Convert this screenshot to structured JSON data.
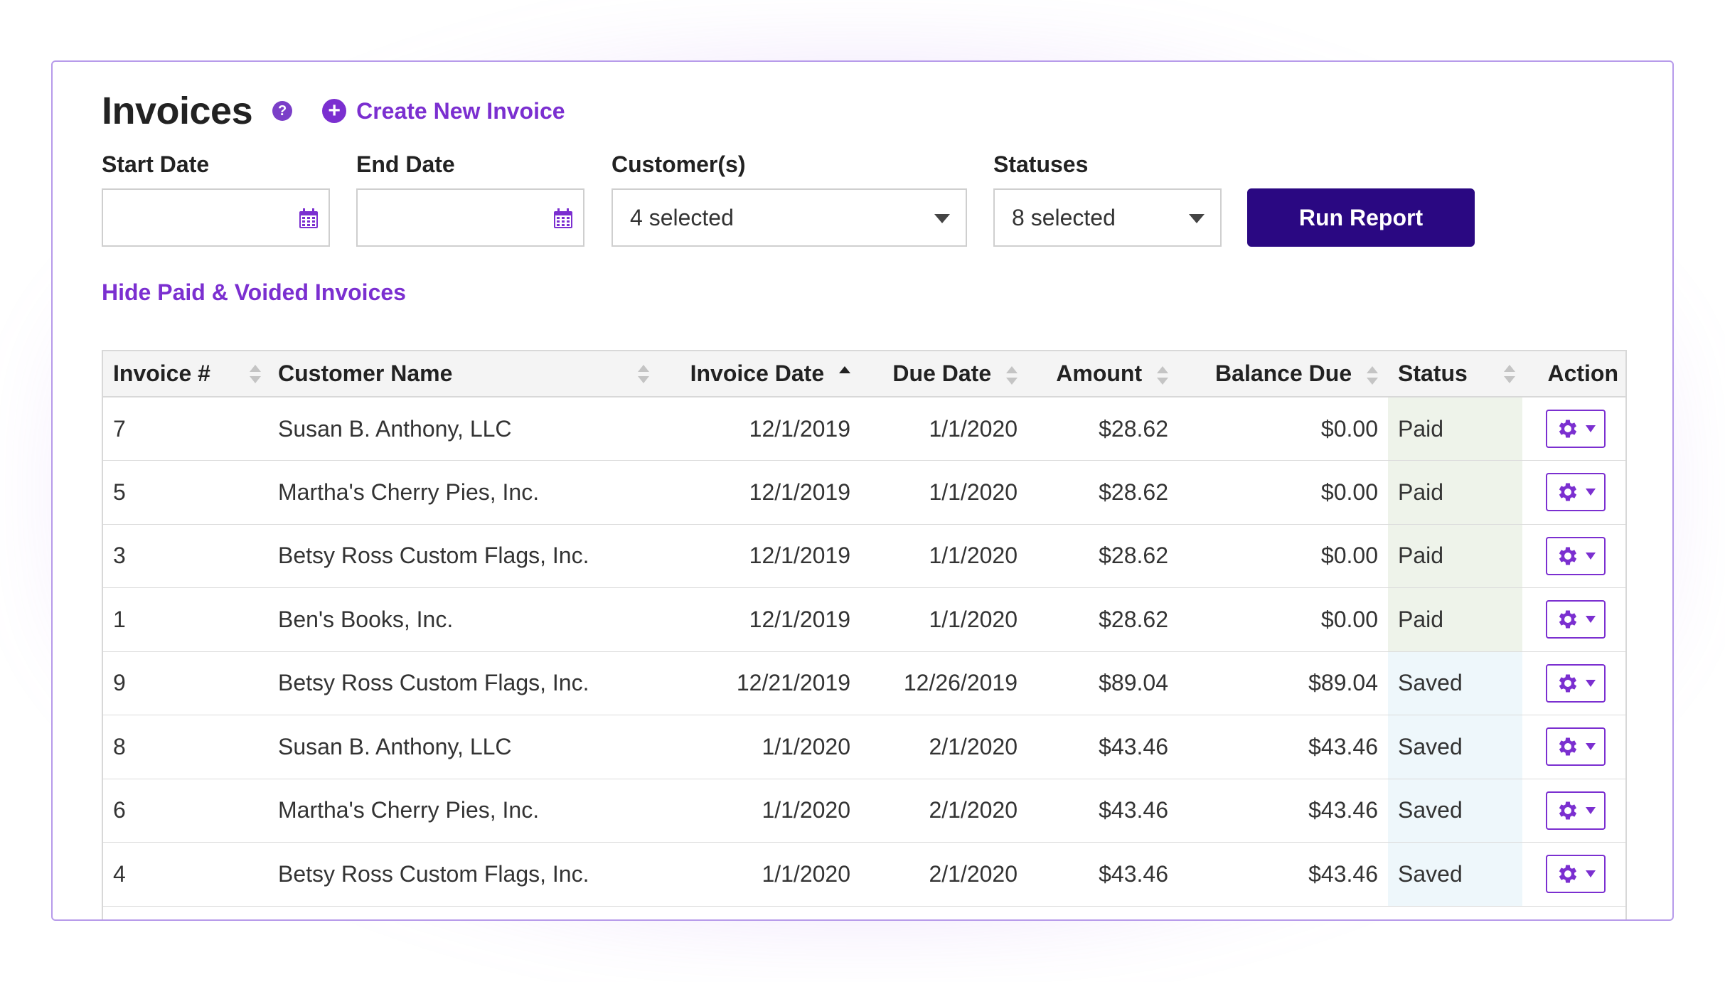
{
  "page": {
    "title": "Invoices",
    "help_icon": "question-circle-icon",
    "create_link": "Create New Invoice",
    "hide_link": "Hide Paid & Voided Invoices",
    "accent_color": "#7b2fd0",
    "button_color": "#2a0882"
  },
  "filters": {
    "start_date_label": "Start Date",
    "start_date_value": "",
    "end_date_label": "End Date",
    "end_date_value": "",
    "customers_label": "Customer(s)",
    "customers_value": "4 selected",
    "statuses_label": "Statuses",
    "statuses_value": "8 selected",
    "run_button": "Run Report"
  },
  "table": {
    "columns": [
      {
        "label": "Invoice #",
        "sortable": true,
        "sort": "none"
      },
      {
        "label": "Customer Name",
        "sortable": true,
        "sort": "none"
      },
      {
        "label": "Invoice Date",
        "sortable": true,
        "sort": "asc"
      },
      {
        "label": "Due Date",
        "sortable": true,
        "sort": "none"
      },
      {
        "label": "Amount",
        "sortable": true,
        "sort": "none"
      },
      {
        "label": "Balance Due",
        "sortable": true,
        "sort": "none"
      },
      {
        "label": "Status",
        "sortable": true,
        "sort": "none"
      },
      {
        "label": "Action",
        "sortable": false,
        "sort": "none"
      }
    ],
    "rows": [
      {
        "invoice": "7",
        "customer": "Susan B. Anthony, LLC",
        "invoice_date": "12/1/2019",
        "due_date": "1/1/2020",
        "amount": "$28.62",
        "balance": "$0.00",
        "status": "Paid"
      },
      {
        "invoice": "5",
        "customer": "Martha's Cherry Pies, Inc.",
        "invoice_date": "12/1/2019",
        "due_date": "1/1/2020",
        "amount": "$28.62",
        "balance": "$0.00",
        "status": "Paid"
      },
      {
        "invoice": "3",
        "customer": "Betsy Ross Custom Flags, Inc.",
        "invoice_date": "12/1/2019",
        "due_date": "1/1/2020",
        "amount": "$28.62",
        "balance": "$0.00",
        "status": "Paid"
      },
      {
        "invoice": "1",
        "customer": "Ben's Books, Inc.",
        "invoice_date": "12/1/2019",
        "due_date": "1/1/2020",
        "amount": "$28.62",
        "balance": "$0.00",
        "status": "Paid"
      },
      {
        "invoice": "9",
        "customer": "Betsy Ross Custom Flags, Inc.",
        "invoice_date": "12/21/2019",
        "due_date": "12/26/2019",
        "amount": "$89.04",
        "balance": "$89.04",
        "status": "Saved"
      },
      {
        "invoice": "8",
        "customer": "Susan B. Anthony, LLC",
        "invoice_date": "1/1/2020",
        "due_date": "2/1/2020",
        "amount": "$43.46",
        "balance": "$43.46",
        "status": "Saved"
      },
      {
        "invoice": "6",
        "customer": "Martha's Cherry Pies, Inc.",
        "invoice_date": "1/1/2020",
        "due_date": "2/1/2020",
        "amount": "$43.46",
        "balance": "$43.46",
        "status": "Saved"
      },
      {
        "invoice": "4",
        "customer": "Betsy Ross Custom Flags, Inc.",
        "invoice_date": "1/1/2020",
        "due_date": "2/1/2020",
        "amount": "$43.46",
        "balance": "$43.46",
        "status": "Saved"
      }
    ]
  }
}
